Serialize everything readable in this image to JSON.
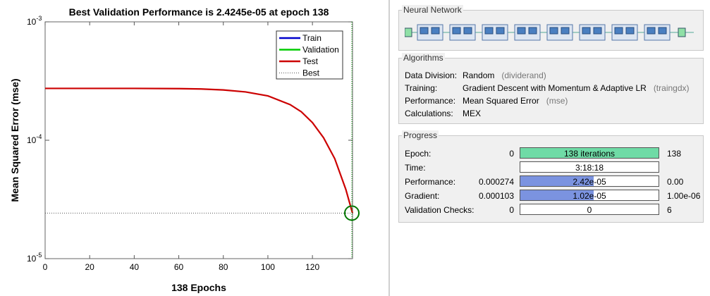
{
  "plot": {
    "title": "Best Validation Performance is 2.4245e-05 at epoch 138",
    "chart_data": {
      "type": "line",
      "title": "Best Validation Performance is 2.4245e-05 at epoch 138",
      "xlabel": "138 Epochs",
      "ylabel": "Mean Squared Error  (mse)",
      "xlim": [
        0,
        138
      ],
      "ylim": [
        1e-05,
        0.001
      ],
      "yscale": "log",
      "x_ticks": [
        0,
        20,
        40,
        60,
        80,
        100,
        120
      ],
      "y_ticks": [
        {
          "base": "10",
          "exp": "-3"
        },
        {
          "base": "10",
          "exp": "-4"
        },
        {
          "base": "10",
          "exp": "-5"
        }
      ],
      "grid": false,
      "legend_position": "top-right",
      "series": [
        {
          "name": "Train",
          "color": "#0000cc",
          "x": [],
          "y": []
        },
        {
          "name": "Validation",
          "color": "#00cc00",
          "x": [],
          "y": []
        },
        {
          "name": "Test",
          "color": "#cc0000",
          "x": [
            0,
            20,
            40,
            60,
            70,
            80,
            90,
            100,
            110,
            115,
            120,
            125,
            130,
            135,
            138
          ],
          "y": [
            0.000274,
            0.000274,
            0.000274,
            0.000273,
            0.000271,
            0.000266,
            0.000256,
            0.000237,
            0.0002,
            0.000174,
            0.000141,
            0.000105,
            7e-05,
            3.84e-05,
            2.42e-05
          ]
        },
        {
          "name": "Best",
          "color": "#555555",
          "x": [
            0,
            138
          ],
          "y": [
            2.4245e-05,
            2.4245e-05
          ],
          "style": "dotted"
        }
      ],
      "best_point": {
        "x": 138,
        "y": 2.4245e-05,
        "color": "#007700"
      }
    }
  },
  "network": {
    "title": "Neural Network"
  },
  "algorithms": {
    "title": "Algorithms",
    "rows": [
      {
        "label": "Data Division:",
        "value": "Random",
        "fn": "(dividerand)"
      },
      {
        "label": "Training:",
        "value": "Gradient Descent with Momentum & Adaptive LR",
        "fn": "(traingdx)"
      },
      {
        "label": "Performance:",
        "value": "Mean Squared Error",
        "fn": "(mse)"
      },
      {
        "label": "Calculations:",
        "value": "MEX",
        "fn": ""
      }
    ]
  },
  "progress": {
    "title": "Progress",
    "rows": [
      {
        "label": "Epoch:",
        "min": "0",
        "bar_text": "138 iterations",
        "max": "138",
        "fill": 1.0,
        "fill_color": "#6fdba6"
      },
      {
        "label": "Time:",
        "min": "",
        "bar_text": "3:18:18",
        "max": "",
        "fill": 0,
        "fill_color": "#ffffff"
      },
      {
        "label": "Performance:",
        "min": "0.000274",
        "bar_text": "2.42e-05",
        "max": "0.00",
        "fill": 0.53,
        "fill_color": "#7b93e0"
      },
      {
        "label": "Gradient:",
        "min": "0.000103",
        "bar_text": "1.02e-05",
        "max": "1.00e-06",
        "fill": 0.53,
        "fill_color": "#7b93e0"
      },
      {
        "label": "Validation Checks:",
        "min": "0",
        "bar_text": "0",
        "max": "6",
        "fill": 0,
        "fill_color": "#ffffff"
      }
    ]
  }
}
